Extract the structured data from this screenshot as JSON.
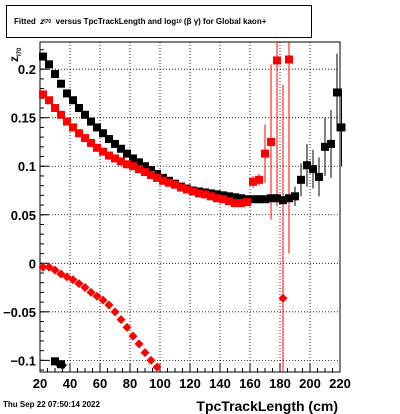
{
  "title": {
    "prefix": "Fitted",
    "z_symbol": "z",
    "z_sub": "I70",
    "middle": "versus TpcTrackLength and log",
    "log_sub": "10",
    "suffix": "(β   γ) for Global kaon+"
  },
  "footer": {
    "date": "Thu Sep 22 07:50:14 2022"
  },
  "chart_data": {
    "type": "scatter",
    "title": "Fitted z_I70 versus TpcTrackLength and log10(β γ) for Global kaon+",
    "xlabel": "TpcTrackLength (cm)",
    "ylabel": "z",
    "ylabel_sub": "I70",
    "xlim": [
      20,
      220
    ],
    "ylim": [
      -0.112,
      0.228
    ],
    "grid": true,
    "x_ticks": [
      20,
      40,
      60,
      80,
      100,
      120,
      140,
      160,
      180,
      200,
      220
    ],
    "y_ticks": [
      -0.1,
      -0.05,
      0,
      0.05,
      0.1,
      0.15,
      0.2
    ],
    "y_tick_labels": [
      "−0.1",
      "−0.05",
      "0",
      "0.05",
      "0.1",
      "0.15",
      "0.2"
    ],
    "colors": {
      "series_black": "#000000",
      "series_red": "#ff0000"
    },
    "series": [
      {
        "marker": "square",
        "color": "#000000",
        "points": [
          {
            "x": 22,
            "y": 0.213
          },
          {
            "x": 26,
            "y": 0.205
          },
          {
            "x": 30,
            "y": 0.195
          },
          {
            "x": 34,
            "y": 0.185
          },
          {
            "x": 38,
            "y": 0.175
          },
          {
            "x": 42,
            "y": 0.168
          },
          {
            "x": 46,
            "y": 0.16
          },
          {
            "x": 50,
            "y": 0.153
          },
          {
            "x": 54,
            "y": 0.146
          },
          {
            "x": 58,
            "y": 0.14
          },
          {
            "x": 62,
            "y": 0.134
          },
          {
            "x": 66,
            "y": 0.128
          },
          {
            "x": 70,
            "y": 0.123
          },
          {
            "x": 74,
            "y": 0.118
          },
          {
            "x": 78,
            "y": 0.113
          },
          {
            "x": 82,
            "y": 0.108
          },
          {
            "x": 86,
            "y": 0.104
          },
          {
            "x": 90,
            "y": 0.1
          },
          {
            "x": 94,
            "y": 0.096
          },
          {
            "x": 98,
            "y": 0.092
          },
          {
            "x": 102,
            "y": 0.088
          },
          {
            "x": 106,
            "y": 0.085
          },
          {
            "x": 110,
            "y": 0.082
          },
          {
            "x": 114,
            "y": 0.079
          },
          {
            "x": 118,
            "y": 0.077
          },
          {
            "x": 122,
            "y": 0.075
          },
          {
            "x": 126,
            "y": 0.074
          },
          {
            "x": 130,
            "y": 0.073
          },
          {
            "x": 134,
            "y": 0.072
          },
          {
            "x": 138,
            "y": 0.071
          },
          {
            "x": 142,
            "y": 0.07
          },
          {
            "x": 146,
            "y": 0.069
          },
          {
            "x": 150,
            "y": 0.068
          },
          {
            "x": 154,
            "y": 0.067
          },
          {
            "x": 158,
            "y": 0.066
          },
          {
            "x": 162,
            "y": 0.066
          },
          {
            "x": 166,
            "y": 0.066
          },
          {
            "x": 170,
            "y": 0.066
          },
          {
            "x": 174,
            "y": 0.067
          },
          {
            "x": 178,
            "y": 0.067
          },
          {
            "x": 182,
            "y": 0.065
          },
          {
            "x": 186,
            "y": 0.067
          },
          {
            "x": 190,
            "y": 0.069,
            "err": 0.01
          },
          {
            "x": 194,
            "y": 0.086,
            "err": 0.017
          },
          {
            "x": 198,
            "y": 0.101,
            "err": 0.022
          },
          {
            "x": 202,
            "y": 0.097,
            "err": 0.02
          },
          {
            "x": 206,
            "y": 0.089,
            "err": 0.02
          },
          {
            "x": 210,
            "y": 0.12,
            "err": 0.03
          },
          {
            "x": 214,
            "y": 0.123,
            "err": 0.035
          },
          {
            "x": 218,
            "y": 0.176,
            "err": 0.04
          },
          {
            "x": 221,
            "y": 0.14,
            "err": 0.04
          },
          {
            "x": 30,
            "y": -0.101
          },
          {
            "x": 34,
            "y": -0.104
          }
        ]
      },
      {
        "marker": "square",
        "color": "#ff0000",
        "points": [
          {
            "x": 22,
            "y": 0.174
          },
          {
            "x": 26,
            "y": 0.168
          },
          {
            "x": 30,
            "y": 0.16
          },
          {
            "x": 34,
            "y": 0.153
          },
          {
            "x": 38,
            "y": 0.146
          },
          {
            "x": 42,
            "y": 0.14
          },
          {
            "x": 46,
            "y": 0.134
          },
          {
            "x": 50,
            "y": 0.129
          },
          {
            "x": 54,
            "y": 0.124
          },
          {
            "x": 58,
            "y": 0.119
          },
          {
            "x": 62,
            "y": 0.115
          },
          {
            "x": 66,
            "y": 0.111
          },
          {
            "x": 70,
            "y": 0.108
          },
          {
            "x": 74,
            "y": 0.105
          },
          {
            "x": 78,
            "y": 0.102
          },
          {
            "x": 82,
            "y": 0.1
          },
          {
            "x": 86,
            "y": 0.097
          },
          {
            "x": 90,
            "y": 0.094
          },
          {
            "x": 94,
            "y": 0.091
          },
          {
            "x": 98,
            "y": 0.088
          },
          {
            "x": 102,
            "y": 0.085
          },
          {
            "x": 106,
            "y": 0.083
          },
          {
            "x": 110,
            "y": 0.081
          },
          {
            "x": 114,
            "y": 0.078
          },
          {
            "x": 118,
            "y": 0.076
          },
          {
            "x": 122,
            "y": 0.074
          },
          {
            "x": 126,
            "y": 0.072
          },
          {
            "x": 130,
            "y": 0.071
          },
          {
            "x": 134,
            "y": 0.069
          },
          {
            "x": 138,
            "y": 0.067
          },
          {
            "x": 142,
            "y": 0.066
          },
          {
            "x": 146,
            "y": 0.064
          },
          {
            "x": 150,
            "y": 0.062
          },
          {
            "x": 154,
            "y": 0.062
          },
          {
            "x": 158,
            "y": 0.063
          },
          {
            "x": 162,
            "y": 0.084,
            "err": 0.006
          },
          {
            "x": 166,
            "y": 0.086,
            "err": 0.006
          },
          {
            "x": 170,
            "y": 0.113,
            "err": 0.03
          },
          {
            "x": 174,
            "y": 0.125,
            "err": 0.08
          },
          {
            "x": 178,
            "y": 0.209,
            "err": 0.15
          },
          {
            "x": 186,
            "y": 0.21,
            "err": 0.2
          }
        ]
      },
      {
        "marker": "diamond",
        "color": "#ff0000",
        "points": [
          {
            "x": 22,
            "y": -0.004
          },
          {
            "x": 26,
            "y": -0.004
          },
          {
            "x": 30,
            "y": -0.007
          },
          {
            "x": 34,
            "y": -0.011
          },
          {
            "x": 38,
            "y": -0.014
          },
          {
            "x": 42,
            "y": -0.017
          },
          {
            "x": 46,
            "y": -0.021
          },
          {
            "x": 50,
            "y": -0.025
          },
          {
            "x": 54,
            "y": -0.03
          },
          {
            "x": 58,
            "y": -0.034
          },
          {
            "x": 62,
            "y": -0.038
          },
          {
            "x": 66,
            "y": -0.043
          },
          {
            "x": 70,
            "y": -0.05
          },
          {
            "x": 74,
            "y": -0.058
          },
          {
            "x": 78,
            "y": -0.066
          },
          {
            "x": 82,
            "y": -0.075
          },
          {
            "x": 86,
            "y": -0.083
          },
          {
            "x": 90,
            "y": -0.092
          },
          {
            "x": 94,
            "y": -0.1
          },
          {
            "x": 98,
            "y": -0.107
          },
          {
            "x": 182,
            "y": -0.036,
            "err": 0.22
          }
        ]
      },
      {
        "marker": "diamond",
        "color": "#000000",
        "points": [
          {
            "x": 32,
            "y": -0.103
          },
          {
            "x": 35,
            "y": -0.105
          }
        ]
      }
    ]
  }
}
